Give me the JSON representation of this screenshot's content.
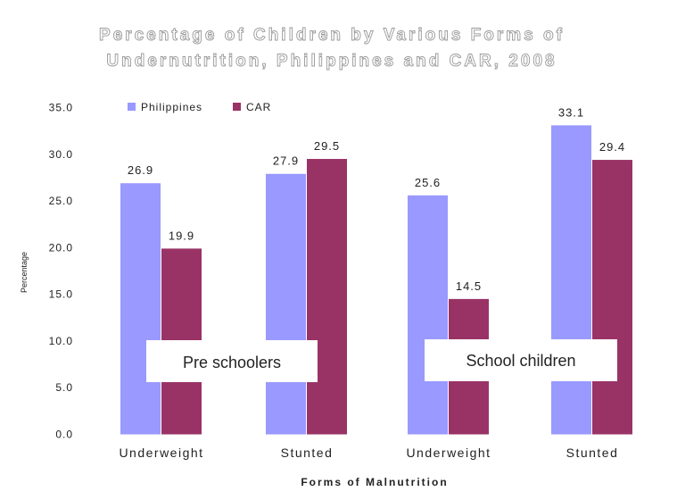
{
  "chart_data": {
    "type": "bar",
    "title_lines": [
      "Percentage of Children by Various Forms of",
      "Undernutrition, Philippines and CAR, 2008"
    ],
    "xlabel": "Forms of Malnutrition",
    "ylabel": "Percentage",
    "ylim": [
      0,
      35
    ],
    "yticks": [
      "0.0",
      "5.0",
      "10.0",
      "15.0",
      "20.0",
      "25.0",
      "30.0",
      "35.0"
    ],
    "categories": [
      "Underweight",
      "Stunted",
      "Underweight",
      "Stunted"
    ],
    "groups": [
      "Pre schoolers",
      "School children"
    ],
    "legend_position": "top-left",
    "grid": false,
    "series": [
      {
        "name": "Philippines",
        "color": "#9999ff",
        "values": [
          26.9,
          27.9,
          25.6,
          33.1
        ],
        "labels": [
          "26.9",
          "27.9",
          "25.6",
          "33.1"
        ]
      },
      {
        "name": "CAR",
        "color": "#993366",
        "values": [
          19.9,
          29.5,
          14.5,
          29.4
        ],
        "labels": [
          "19.9",
          "29.5",
          "14.5",
          "29.4"
        ]
      }
    ]
  }
}
